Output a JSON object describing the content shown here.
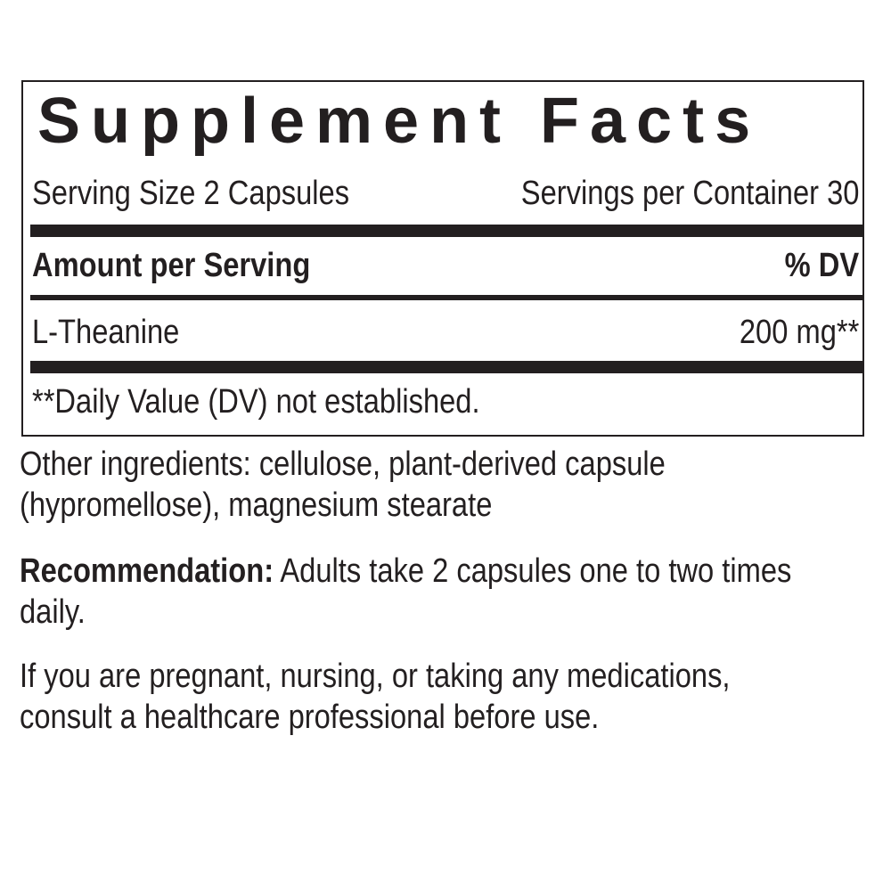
{
  "title": "Supplement Facts",
  "serving_size": "Serving Size 2 Capsules",
  "servings_per_container": "Servings per Container 30",
  "amount_header": "Amount per Serving",
  "dv_header": "% DV",
  "ingredient": {
    "name": "L-Theanine",
    "amount": "200 mg**"
  },
  "footnote": "**Daily Value (DV) not established.",
  "other_ingredients": "Other ingredients: cellulose, plant-derived capsule (hypromellose), magnesium stearate",
  "recommendation_label": "Recommendation:",
  "recommendation_text": " Adults take 2 capsules one to two times daily.",
  "warning": "If you are pregnant, nursing, or taking any medications, consult a healthcare professional before use."
}
